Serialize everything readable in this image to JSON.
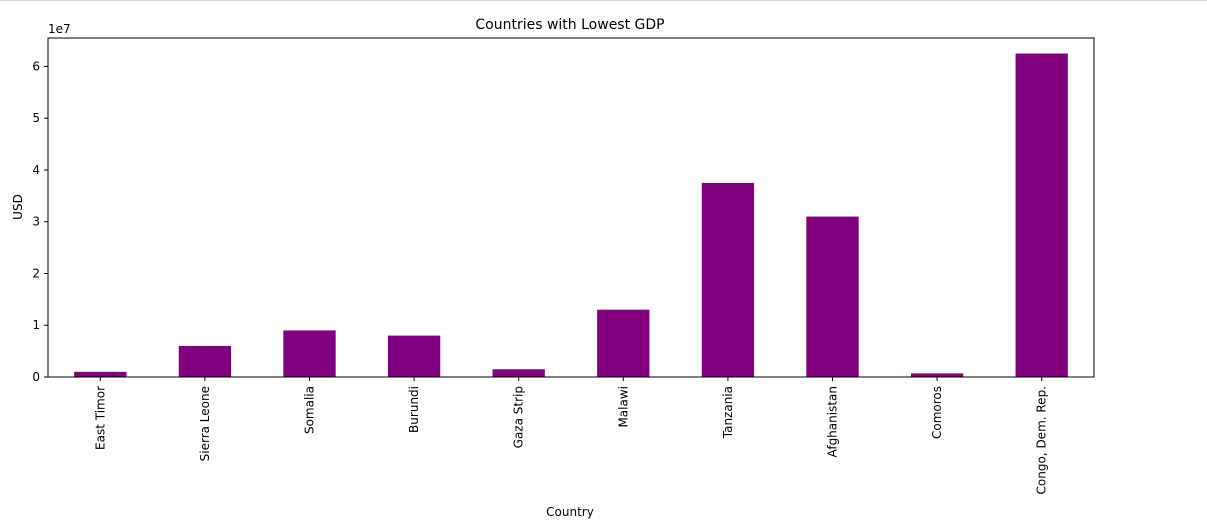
{
  "chart_data": {
    "type": "bar",
    "title": "Countries with Lowest GDP",
    "xlabel": "Country",
    "ylabel": "USD",
    "offset_text": "1e7",
    "categories": [
      "East Timor",
      "Sierra Leone",
      "Somalia",
      "Burundi",
      "Gaza Strip",
      "Malawi",
      "Tanzania",
      "Afghanistan",
      "Comoros",
      "Congo, Dem. Rep."
    ],
    "values": [
      1000000,
      6000000,
      9000000,
      8000000,
      1500000,
      13000000,
      37500000,
      31000000,
      700000,
      62500000
    ],
    "ylim": [
      0,
      65500000
    ],
    "yticks": [
      0,
      10000000,
      20000000,
      30000000,
      40000000,
      50000000,
      60000000
    ],
    "ytick_labels": [
      "0",
      "1",
      "2",
      "3",
      "4",
      "5",
      "6"
    ],
    "bar_color": "#800080",
    "grid": false,
    "legend": "none"
  }
}
